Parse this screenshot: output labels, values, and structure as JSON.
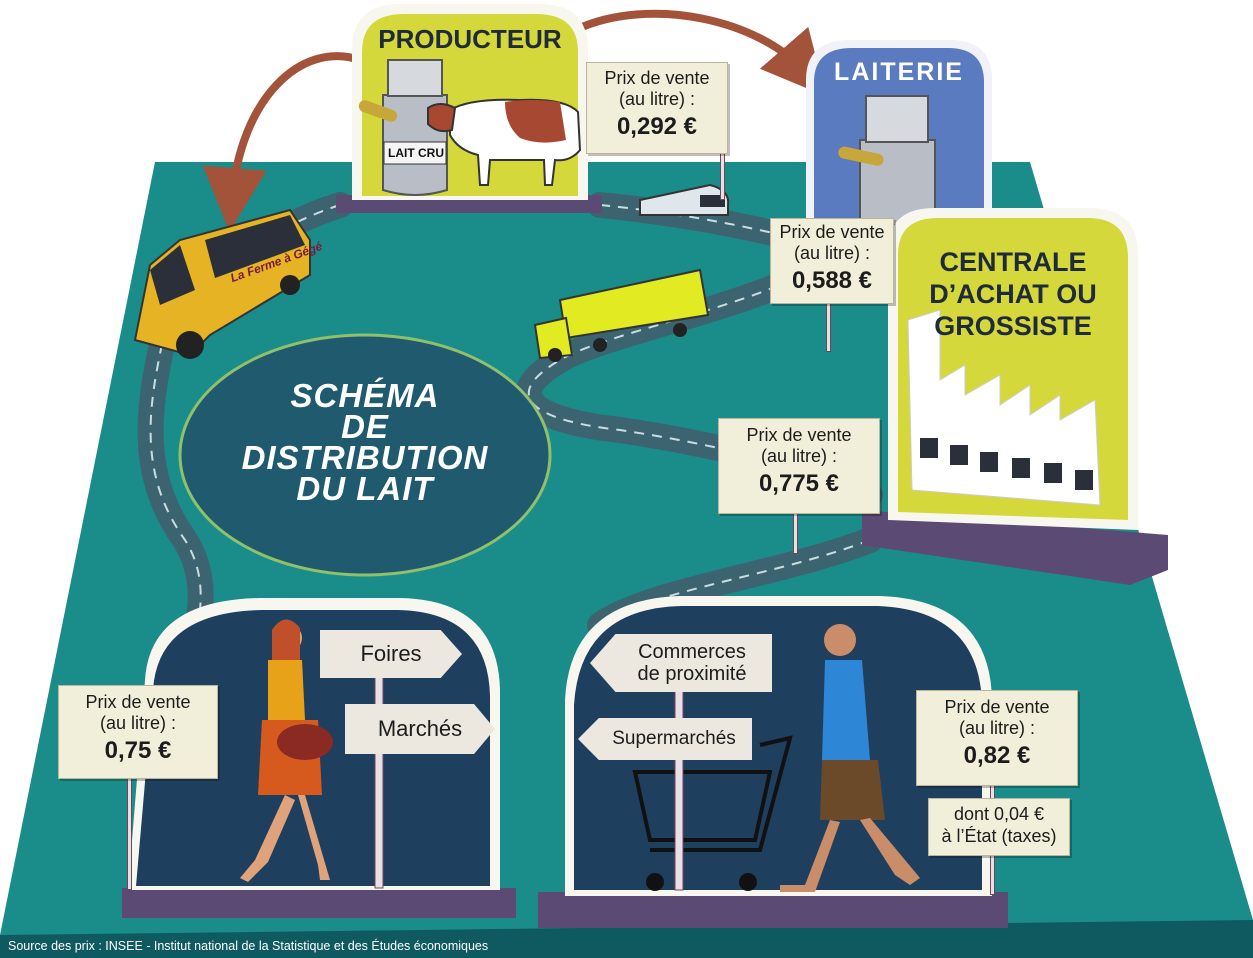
{
  "title": {
    "line1": "SCHÉMA",
    "line2": "DE",
    "line3": "DISTRIBUTION",
    "line4": "DU LAIT"
  },
  "stages": {
    "producteur": {
      "label": "PRODUCTEUR",
      "can_label": "LAIT CRU"
    },
    "laiterie": {
      "label": "LAITERIE"
    },
    "centrale": {
      "line1": "CENTRALE",
      "line2": "D’ACHAT OU",
      "line3": "GROSSISTE"
    },
    "van_label": "La Ferme à Gégé"
  },
  "prices": {
    "label_line1": "Prix de vente",
    "label_line2": "(au litre) :",
    "producteur": "0,292 €",
    "laiterie": "0,588 €",
    "centrale": "0,775 €",
    "marches": "0,75 €",
    "supermarches": "0,82 €"
  },
  "tax_note": {
    "line1": "dont 0,04 €",
    "line2": "à l’État (taxes)"
  },
  "signs": {
    "foires": "Foires",
    "marches": "Marchés",
    "commerces_line1": "Commerces",
    "commerces_line2": "de proximité",
    "supermarches": "Supermarchés"
  },
  "source": "Source des prix : INSEE - Institut national de la Statistique et des Études économiques",
  "colors": {
    "ground": "#1a8c8a",
    "ground_dark": "#0f5e63",
    "panel_yellow": "#d4d83a",
    "panel_blue": "#5a7bc0",
    "stage_dark": "#1c3a5a",
    "road": "#3c6470",
    "arrow": "#a2533a"
  }
}
